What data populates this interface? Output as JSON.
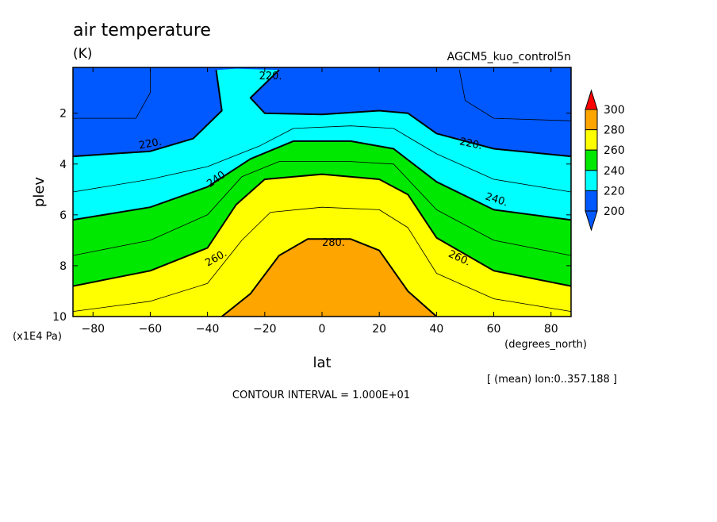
{
  "chart_data": {
    "type": "contour",
    "title": "air temperature",
    "units": "(K)",
    "dataset": "AGCM5_kuo_control5n",
    "xlabel": "lat",
    "x_units": "(degrees_north)",
    "ylabel": "plev",
    "y_units": "(x1E4 Pa)",
    "xlim": [
      -87,
      87
    ],
    "ylim": [
      10,
      0.2
    ],
    "x_ticks": [
      "-80",
      "-60",
      "-40",
      "-20",
      "0",
      "20",
      "40",
      "60",
      "80"
    ],
    "y_ticks": [
      "2",
      "4",
      "6",
      "8",
      "10"
    ],
    "colorbar_levels": [
      "200",
      "220",
      "240",
      "260",
      "280",
      "300"
    ],
    "colorbar_colors": [
      "#0058ff",
      "#0058ff",
      "#00ffff",
      "#00e800",
      "#ffff00",
      "#ffa500",
      "#ff0000"
    ],
    "contour_interval_text": "CONTOUR INTERVAL = 1.000E+01",
    "mean_note": "[ (mean) lon:0..357.188 ]",
    "contour_labels": [
      "220.",
      "220.",
      "220.",
      "240",
      "240.",
      "260.",
      "260.",
      "280."
    ],
    "contours": [
      {
        "level": 280,
        "points": [
          [
            -35,
            10
          ],
          [
            -25,
            9.1
          ],
          [
            -15,
            7.6
          ],
          [
            -5,
            6.95
          ],
          [
            10,
            6.95
          ],
          [
            20,
            7.4
          ],
          [
            30,
            9.0
          ],
          [
            40,
            10
          ]
        ]
      },
      {
        "level": 270,
        "points": [
          [
            -87,
            9.8
          ],
          [
            -60,
            9.4
          ],
          [
            -40,
            8.7
          ],
          [
            -28,
            7.0
          ],
          [
            -18,
            5.9
          ],
          [
            0,
            5.7
          ],
          [
            20,
            5.8
          ],
          [
            30,
            6.5
          ],
          [
            40,
            8.3
          ],
          [
            60,
            9.3
          ],
          [
            87,
            9.8
          ]
        ]
      },
      {
        "level": 260,
        "points": [
          [
            -87,
            8.8
          ],
          [
            -60,
            8.2
          ],
          [
            -40,
            7.3
          ],
          [
            -30,
            5.6
          ],
          [
            -20,
            4.6
          ],
          [
            0,
            4.4
          ],
          [
            20,
            4.6
          ],
          [
            30,
            5.2
          ],
          [
            40,
            6.9
          ],
          [
            60,
            8.2
          ],
          [
            87,
            8.8
          ]
        ]
      },
      {
        "level": 250,
        "points": [
          [
            -87,
            7.6
          ],
          [
            -60,
            7.0
          ],
          [
            -40,
            6.0
          ],
          [
            -28,
            4.5
          ],
          [
            -15,
            3.9
          ],
          [
            10,
            3.9
          ],
          [
            25,
            4.0
          ],
          [
            40,
            5.8
          ],
          [
            60,
            7.0
          ],
          [
            87,
            7.6
          ]
        ]
      },
      {
        "level": 240,
        "points": [
          [
            -87,
            6.2
          ],
          [
            -60,
            5.7
          ],
          [
            -40,
            4.9
          ],
          [
            -25,
            3.8
          ],
          [
            -10,
            3.1
          ],
          [
            10,
            3.1
          ],
          [
            25,
            3.4
          ],
          [
            40,
            4.7
          ],
          [
            60,
            5.8
          ],
          [
            87,
            6.2
          ]
        ]
      },
      {
        "level": 230,
        "points": [
          [
            -87,
            5.1
          ],
          [
            -60,
            4.6
          ],
          [
            -40,
            4.1
          ],
          [
            -22,
            3.3
          ],
          [
            -10,
            2.6
          ],
          [
            10,
            2.5
          ],
          [
            25,
            2.6
          ],
          [
            40,
            3.6
          ],
          [
            60,
            4.6
          ],
          [
            87,
            5.1
          ]
        ]
      },
      {
        "level": 220,
        "points": [
          [
            -87,
            3.7
          ],
          [
            -60,
            3.5
          ],
          [
            -45,
            3.0
          ],
          [
            -35,
            1.9
          ],
          [
            -37,
            0.3
          ]
        ]
      },
      {
        "level": 220,
        "points": [
          [
            -15,
            0.3
          ],
          [
            -25,
            1.4
          ],
          [
            -20,
            2.0
          ],
          [
            0,
            2.05
          ],
          [
            20,
            1.9
          ],
          [
            30,
            2.0
          ],
          [
            40,
            2.8
          ],
          [
            60,
            3.4
          ],
          [
            87,
            3.7
          ]
        ]
      },
      {
        "level": 210,
        "points": [
          [
            -87,
            2.2
          ],
          [
            -65,
            2.2
          ],
          [
            -60,
            1.2
          ],
          [
            -60,
            0.3
          ]
        ]
      },
      {
        "level": 210,
        "points": [
          [
            48,
            0.3
          ],
          [
            50,
            1.5
          ],
          [
            60,
            2.2
          ],
          [
            87,
            2.3
          ]
        ]
      }
    ]
  }
}
